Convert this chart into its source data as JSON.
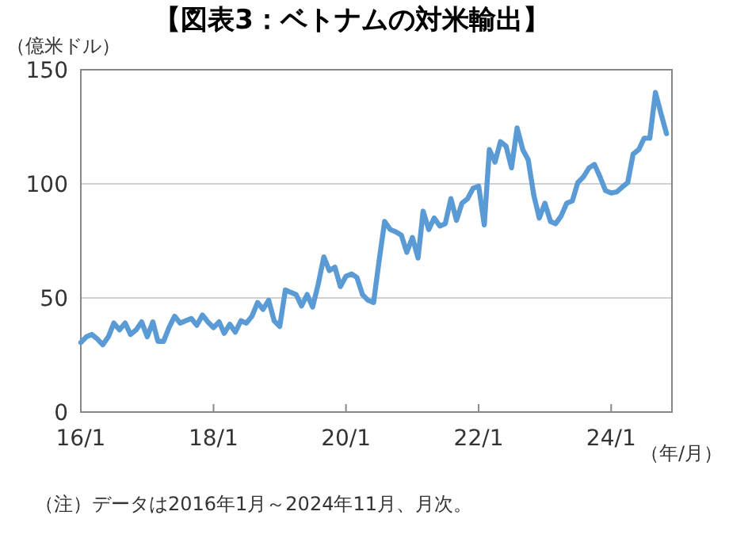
{
  "chart_data": {
    "type": "line",
    "title": "【図表3：ベトナムの対米輸出】",
    "ylabel": "（億米ドル）",
    "xlabel": "（年/月）",
    "annotations": [
      "（注）データは2016年1月～2024年11月、月次。"
    ],
    "x": [
      "2016-01",
      "2016-02",
      "2016-03",
      "2016-04",
      "2016-05",
      "2016-06",
      "2016-07",
      "2016-08",
      "2016-09",
      "2016-10",
      "2016-11",
      "2016-12",
      "2017-01",
      "2017-02",
      "2017-03",
      "2017-04",
      "2017-05",
      "2017-06",
      "2017-07",
      "2017-08",
      "2017-09",
      "2017-10",
      "2017-11",
      "2017-12",
      "2018-01",
      "2018-02",
      "2018-03",
      "2018-04",
      "2018-05",
      "2018-06",
      "2018-07",
      "2018-08",
      "2018-09",
      "2018-10",
      "2018-11",
      "2018-12",
      "2019-01",
      "2019-02",
      "2019-03",
      "2019-04",
      "2019-05",
      "2019-06",
      "2019-07",
      "2019-08",
      "2019-09",
      "2019-10",
      "2019-11",
      "2019-12",
      "2020-01",
      "2020-02",
      "2020-03",
      "2020-04",
      "2020-05",
      "2020-06",
      "2020-07",
      "2020-08",
      "2020-09",
      "2020-10",
      "2020-11",
      "2020-12",
      "2021-01",
      "2021-02",
      "2021-03",
      "2021-04",
      "2021-05",
      "2021-06",
      "2021-07",
      "2021-08",
      "2021-09",
      "2021-10",
      "2021-11",
      "2021-12",
      "2022-01",
      "2022-02",
      "2022-03",
      "2022-04",
      "2022-05",
      "2022-06",
      "2022-07",
      "2022-08",
      "2022-09",
      "2022-10",
      "2022-11",
      "2022-12",
      "2023-01",
      "2023-02",
      "2023-03",
      "2023-04",
      "2023-05",
      "2023-06",
      "2023-07",
      "2023-08",
      "2023-09",
      "2023-10",
      "2023-11",
      "2023-12",
      "2024-01",
      "2024-02",
      "2024-03",
      "2024-04",
      "2024-05",
      "2024-06",
      "2024-07",
      "2024-08",
      "2024-09",
      "2024-10",
      "2024-11"
    ],
    "series": [
      {
        "color": "#5b9bd5",
        "values": [
          30.5,
          33,
          34,
          32,
          29.5,
          33,
          39,
          36,
          39,
          34,
          36,
          39.5,
          33,
          39.5,
          31,
          31,
          37,
          42,
          39,
          40,
          41,
          38,
          42.5,
          39.5,
          37,
          39.5,
          34.5,
          38.5,
          35,
          40,
          39,
          42,
          48,
          45,
          49,
          40,
          37.5,
          53.5,
          52.5,
          51.5,
          46.5,
          51.5,
          46,
          56,
          68,
          62,
          63.5,
          55,
          59.5,
          60.5,
          59,
          51.5,
          49,
          48,
          66,
          83.5,
          80,
          79,
          77.5,
          70,
          76.5,
          67.5,
          88,
          80,
          85,
          81.5,
          82.5,
          93.5,
          84,
          91.5,
          93.5,
          98,
          99,
          82,
          115,
          109.5,
          118.5,
          116.5,
          107,
          124.5,
          115,
          110.5,
          95,
          85,
          91.5,
          83.5,
          82.5,
          86,
          91.5,
          92.5,
          100.5,
          103,
          107,
          108.5,
          103,
          97,
          96,
          96.5,
          98.5,
          100.5,
          113,
          115,
          120,
          120,
          140,
          131,
          122
        ]
      }
    ],
    "xlim": [
      "2016-01",
      "2024-12"
    ],
    "xticks": [
      {
        "value": "2016-01",
        "label": "16/1"
      },
      {
        "value": "2018-01",
        "label": "18/1"
      },
      {
        "value": "2020-01",
        "label": "20/1"
      },
      {
        "value": "2022-01",
        "label": "22/1"
      },
      {
        "value": "2024-01",
        "label": "24/1"
      }
    ],
    "ylim": [
      0,
      150
    ],
    "yticks": [
      0,
      50,
      100,
      150
    ],
    "grid": "y",
    "line_style": "solid",
    "marker": "none"
  }
}
